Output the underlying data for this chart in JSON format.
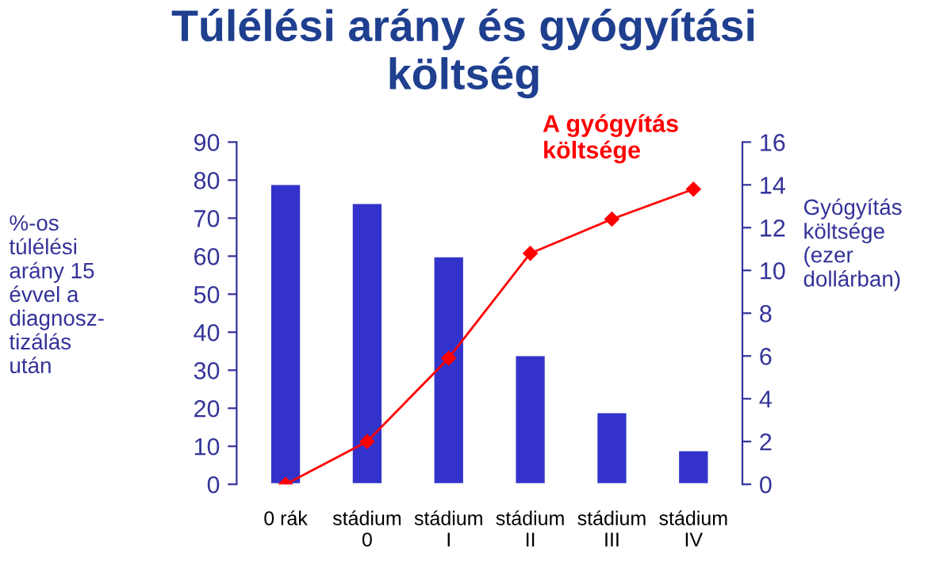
{
  "chart_data": {
    "type": "bar",
    "title": "Túlélési arány és gyógyítási\nköltség",
    "categories": [
      "0 rák",
      "stádium\n0",
      "stádium\nI",
      "stádium\nII",
      "stádium\nIII",
      "stádium\nIV"
    ],
    "series": [
      {
        "color": "#3333cc",
        "values": [
          79,
          74,
          60,
          34,
          19,
          9
        ]
      },
      {
        "type": "line",
        "axis": "y2",
        "name": "A gyógyítás\nköltsége",
        "color": "#ff0000",
        "values": [
          0,
          2,
          5.9,
          10.8,
          12.4,
          13.8
        ]
      }
    ],
    "ylabel": "%-os\ntúlélési\narány 15\névvel a\ndiagnosz-\ntizálás\nután",
    "y2label": "Gyógyítás\nköltsége\n(ezer\ndollárban)",
    "ylim": [
      0,
      90
    ],
    "yticks": [
      0,
      10,
      20,
      30,
      40,
      50,
      60,
      70,
      80,
      90
    ],
    "y2lim": [
      0,
      16
    ],
    "y2ticks": [
      0,
      2,
      4,
      6,
      8,
      10,
      12,
      14,
      16
    ],
    "marker": "diamond",
    "legend": false,
    "grid": false
  }
}
